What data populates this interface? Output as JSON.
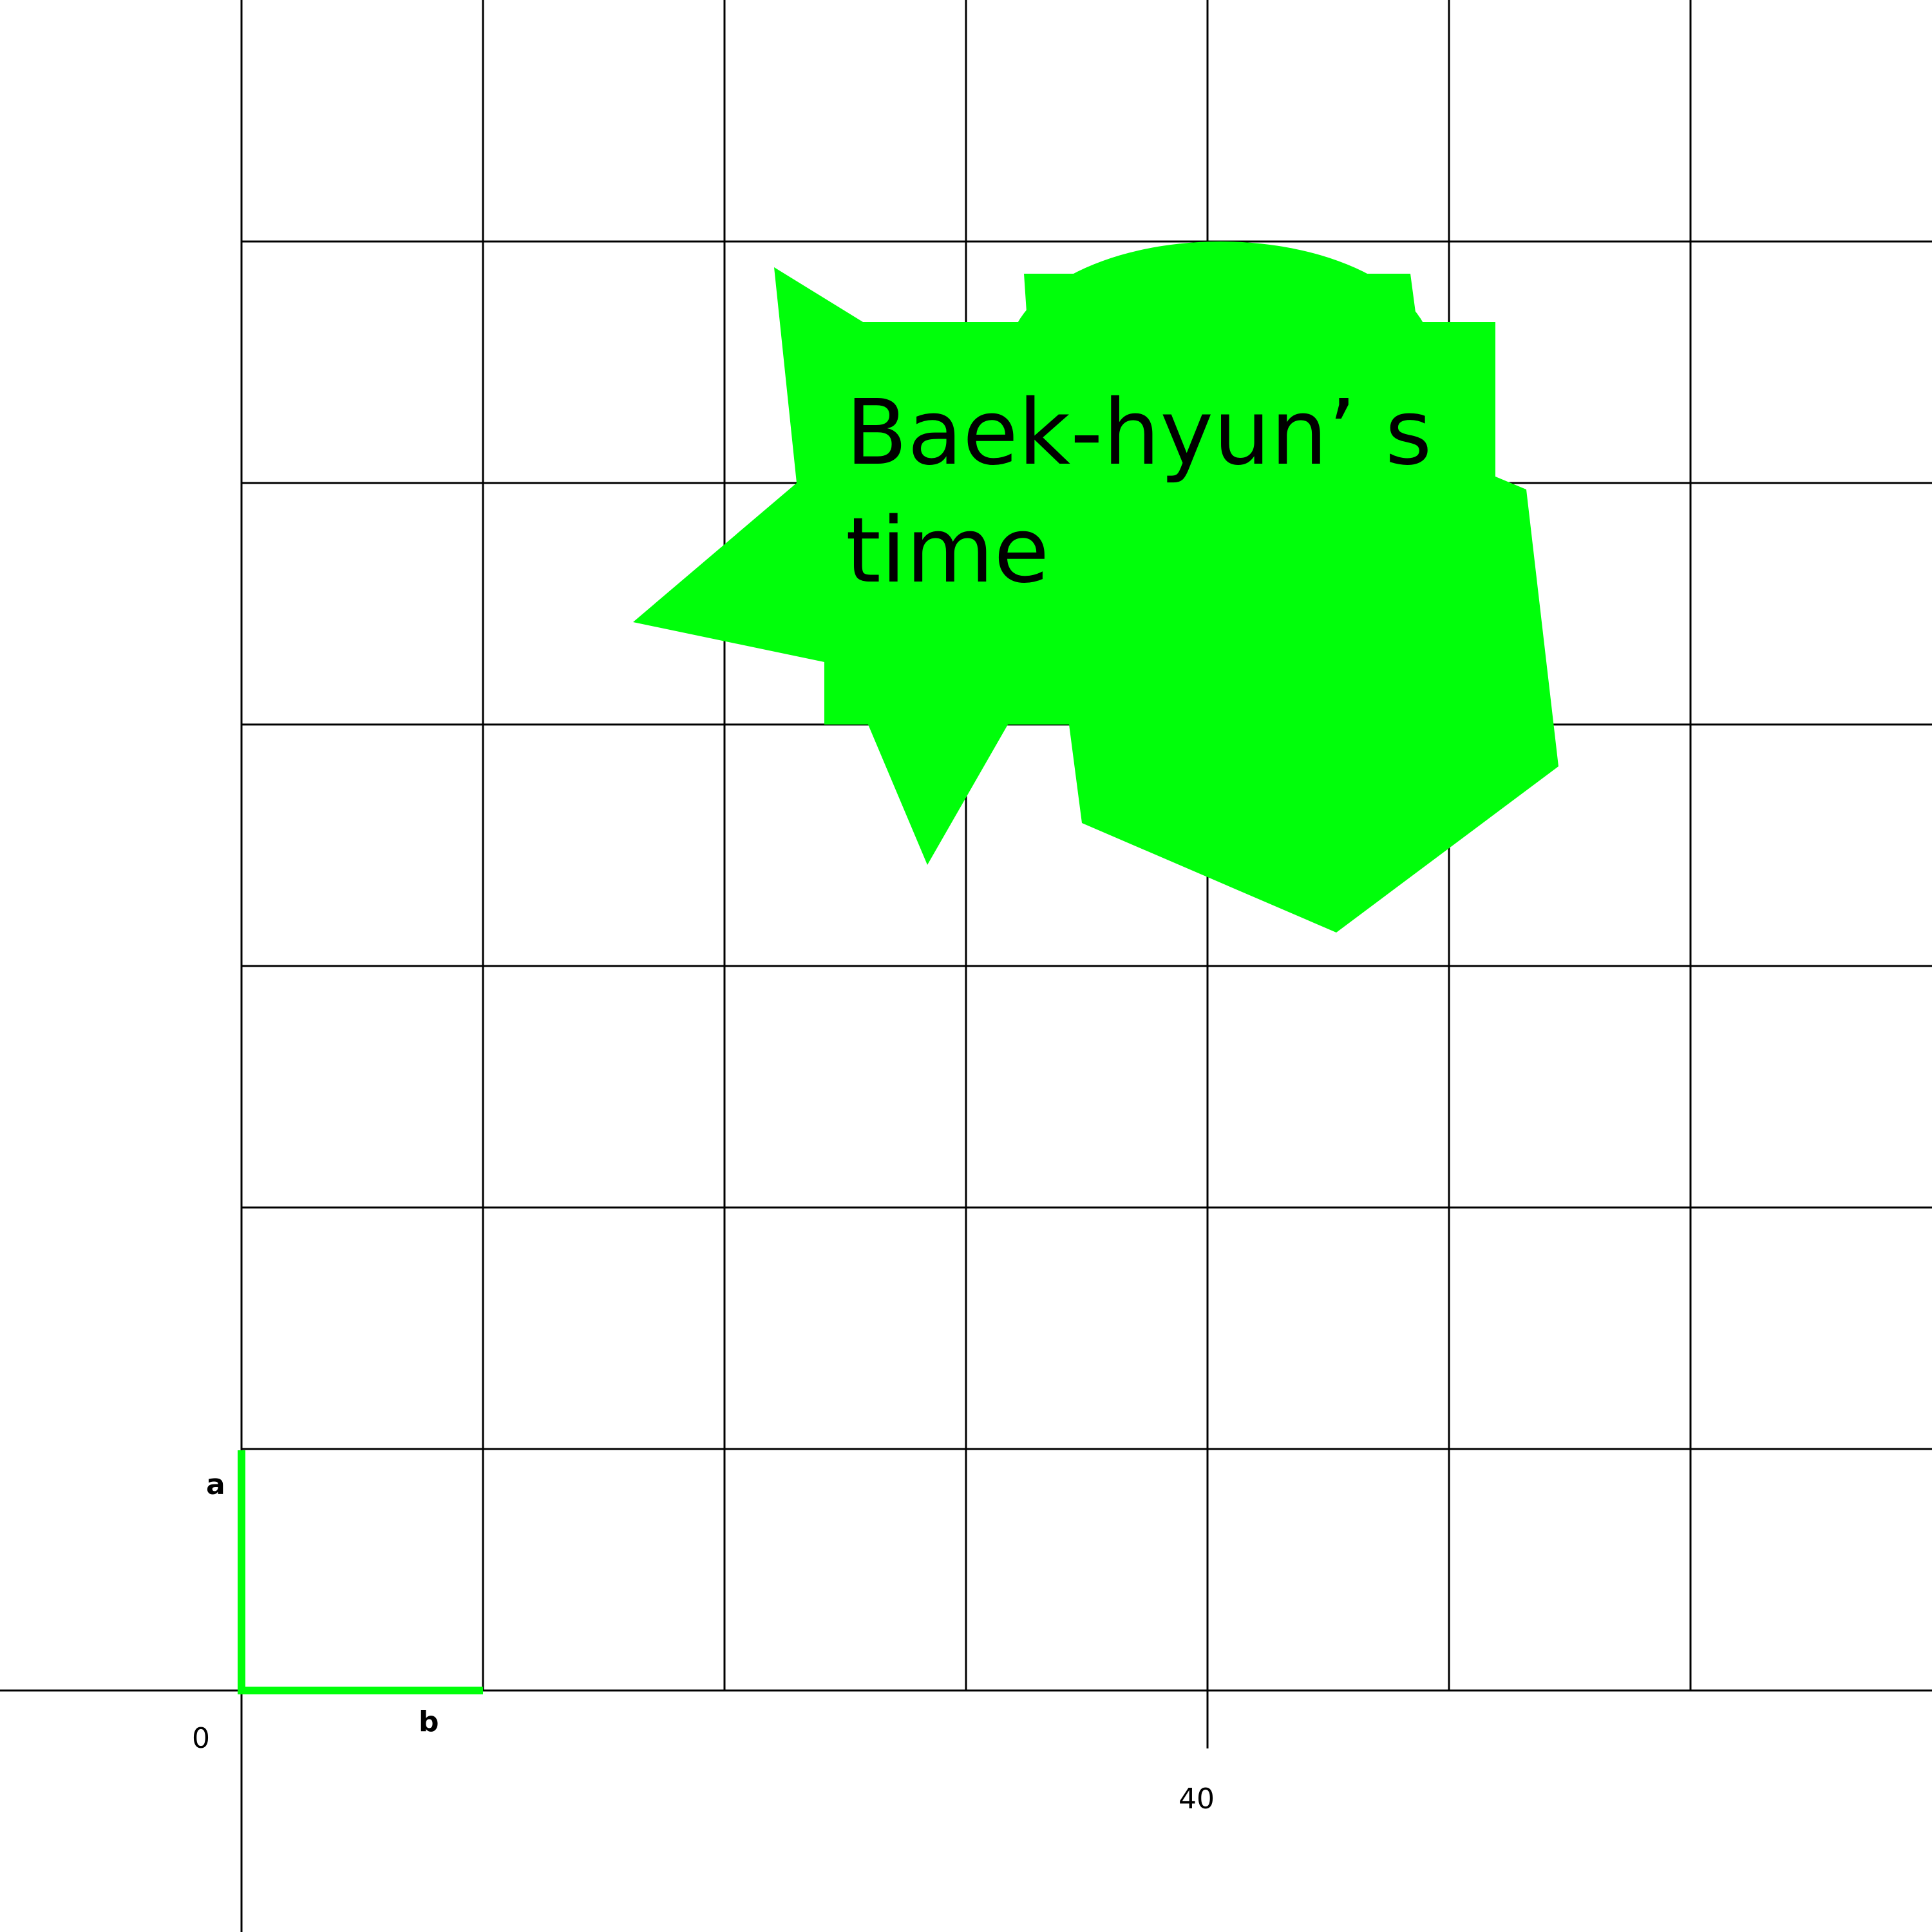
{
  "colors": {
    "background": "#ffffff",
    "grid": "#000000",
    "shape_fill": "#00ff0a",
    "segment": "#00ff0a",
    "text": "#000000"
  },
  "axes": {
    "x_ticks": [
      {
        "value": 0,
        "label": "0"
      },
      {
        "value": 40,
        "label": "40"
      }
    ]
  },
  "segments": {
    "a": {
      "label": "a"
    },
    "b": {
      "label": "b"
    }
  },
  "shape": {
    "text_line1": "Baek-hyun’ s",
    "text_line2": "time"
  }
}
